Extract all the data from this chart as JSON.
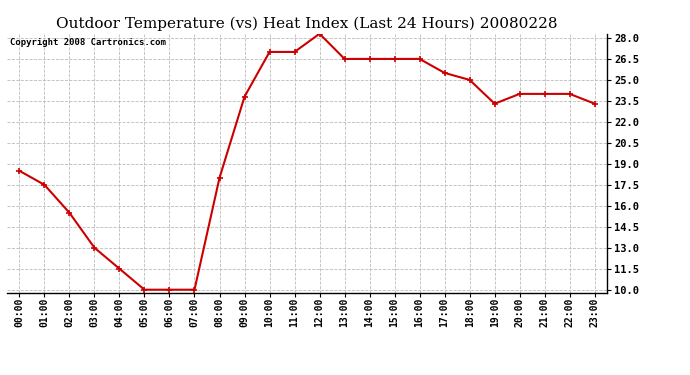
{
  "title": "Outdoor Temperature (vs) Heat Index (Last 24 Hours) 20080228",
  "copyright": "Copyright 2008 Cartronics.com",
  "hours": [
    "00:00",
    "01:00",
    "02:00",
    "03:00",
    "04:00",
    "05:00",
    "06:00",
    "07:00",
    "08:00",
    "09:00",
    "10:00",
    "11:00",
    "12:00",
    "13:00",
    "14:00",
    "15:00",
    "16:00",
    "17:00",
    "18:00",
    "19:00",
    "20:00",
    "21:00",
    "22:00",
    "23:00"
  ],
  "values": [
    18.5,
    17.5,
    15.5,
    13.0,
    11.5,
    10.0,
    10.0,
    10.0,
    18.0,
    23.8,
    27.0,
    27.0,
    28.3,
    26.5,
    26.5,
    26.5,
    26.5,
    25.5,
    25.0,
    23.3,
    24.0,
    24.0,
    24.0,
    23.3
  ],
  "ylim_min": 10.0,
  "ylim_max": 28.0,
  "yticks": [
    10.0,
    11.5,
    13.0,
    14.5,
    16.0,
    17.5,
    19.0,
    20.5,
    22.0,
    23.5,
    25.0,
    26.5,
    28.0
  ],
  "line_color": "#cc0000",
  "marker": "+",
  "marker_size": 5,
  "marker_linewidth": 1.2,
  "line_width": 1.5,
  "bg_color": "#ffffff",
  "grid_color": "#bbbbbb",
  "title_fontsize": 11,
  "copyright_fontsize": 6.5,
  "xtick_fontsize": 7,
  "ytick_fontsize": 7.5
}
